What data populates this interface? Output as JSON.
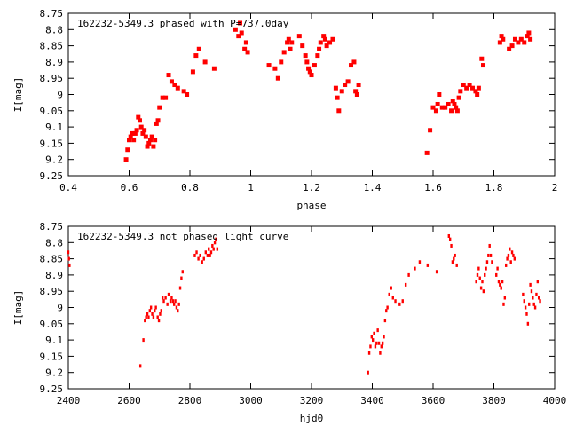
{
  "chart_data": [
    {
      "type": "scatter",
      "title": "162232-5349.3 phased with P=737.0day",
      "xlabel": "phase",
      "ylabel": "I[mag]",
      "xlim": [
        0.4,
        2.0
      ],
      "ylim": [
        9.25,
        8.75
      ],
      "y_inverted": true,
      "grid": false,
      "marker": "filled-square",
      "color": "#ff0000",
      "xticks": [
        "0.4",
        "0.6",
        "0.8",
        "1",
        "1.2",
        "1.4",
        "1.6",
        "1.8",
        "2"
      ],
      "yticks": [
        "8.75",
        "8.8",
        "8.85",
        "8.9",
        "8.95",
        "9",
        "9.05",
        "9.1",
        "9.15",
        "9.2",
        "9.25"
      ],
      "points": [
        [
          0.59,
          9.2
        ],
        [
          0.595,
          9.17
        ],
        [
          0.6,
          9.14
        ],
        [
          0.605,
          9.13
        ],
        [
          0.61,
          9.12
        ],
        [
          0.615,
          9.14
        ],
        [
          0.62,
          9.12
        ],
        [
          0.625,
          9.11
        ],
        [
          0.63,
          9.07
        ],
        [
          0.635,
          9.08
        ],
        [
          0.64,
          9.1
        ],
        [
          0.645,
          9.12
        ],
        [
          0.65,
          9.11
        ],
        [
          0.655,
          9.13
        ],
        [
          0.66,
          9.16
        ],
        [
          0.665,
          9.15
        ],
        [
          0.67,
          9.14
        ],
        [
          0.675,
          9.13
        ],
        [
          0.68,
          9.16
        ],
        [
          0.685,
          9.14
        ],
        [
          0.69,
          9.09
        ],
        [
          0.695,
          9.08
        ],
        [
          0.7,
          9.04
        ],
        [
          0.71,
          9.01
        ],
        [
          0.72,
          9.01
        ],
        [
          0.73,
          8.94
        ],
        [
          0.74,
          8.96
        ],
        [
          0.75,
          8.97
        ],
        [
          0.76,
          8.98
        ],
        [
          0.78,
          8.99
        ],
        [
          0.79,
          9.0
        ],
        [
          0.81,
          8.93
        ],
        [
          0.82,
          8.88
        ],
        [
          0.83,
          8.86
        ],
        [
          0.85,
          8.9
        ],
        [
          0.88,
          8.92
        ],
        [
          0.95,
          8.8
        ],
        [
          0.96,
          8.82
        ],
        [
          0.965,
          8.78
        ],
        [
          0.97,
          8.81
        ],
        [
          0.98,
          8.86
        ],
        [
          0.985,
          8.84
        ],
        [
          0.99,
          8.87
        ],
        [
          1.06,
          8.91
        ],
        [
          1.08,
          8.92
        ],
        [
          1.09,
          8.95
        ],
        [
          1.1,
          8.9
        ],
        [
          1.11,
          8.87
        ],
        [
          1.12,
          8.84
        ],
        [
          1.125,
          8.83
        ],
        [
          1.13,
          8.86
        ],
        [
          1.135,
          8.84
        ],
        [
          1.16,
          8.82
        ],
        [
          1.17,
          8.85
        ],
        [
          1.18,
          8.88
        ],
        [
          1.185,
          8.9
        ],
        [
          1.19,
          8.92
        ],
        [
          1.195,
          8.93
        ],
        [
          1.2,
          8.94
        ],
        [
          1.21,
          8.91
        ],
        [
          1.22,
          8.88
        ],
        [
          1.225,
          8.86
        ],
        [
          1.23,
          8.84
        ],
        [
          1.24,
          8.82
        ],
        [
          1.245,
          8.83
        ],
        [
          1.25,
          8.85
        ],
        [
          1.26,
          8.84
        ],
        [
          1.27,
          8.83
        ],
        [
          1.28,
          8.98
        ],
        [
          1.285,
          9.01
        ],
        [
          1.29,
          9.05
        ],
        [
          1.3,
          8.99
        ],
        [
          1.31,
          8.97
        ],
        [
          1.32,
          8.96
        ],
        [
          1.33,
          8.91
        ],
        [
          1.34,
          8.9
        ],
        [
          1.345,
          8.99
        ],
        [
          1.35,
          9.0
        ],
        [
          1.355,
          8.97
        ],
        [
          1.58,
          9.18
        ],
        [
          1.59,
          9.11
        ],
        [
          1.6,
          9.04
        ],
        [
          1.61,
          9.05
        ],
        [
          1.615,
          9.03
        ],
        [
          1.62,
          9.0
        ],
        [
          1.63,
          9.04
        ],
        [
          1.64,
          9.04
        ],
        [
          1.65,
          9.03
        ],
        [
          1.66,
          9.05
        ],
        [
          1.665,
          9.02
        ],
        [
          1.67,
          9.03
        ],
        [
          1.675,
          9.04
        ],
        [
          1.68,
          9.05
        ],
        [
          1.685,
          9.01
        ],
        [
          1.69,
          8.99
        ],
        [
          1.7,
          8.97
        ],
        [
          1.71,
          8.98
        ],
        [
          1.72,
          8.97
        ],
        [
          1.73,
          8.98
        ],
        [
          1.74,
          8.99
        ],
        [
          1.745,
          9.0
        ],
        [
          1.75,
          8.98
        ],
        [
          1.76,
          8.89
        ],
        [
          1.765,
          8.91
        ],
        [
          1.82,
          8.84
        ],
        [
          1.825,
          8.82
        ],
        [
          1.83,
          8.83
        ],
        [
          1.85,
          8.86
        ],
        [
          1.86,
          8.85
        ],
        [
          1.87,
          8.83
        ],
        [
          1.88,
          8.84
        ],
        [
          1.89,
          8.83
        ],
        [
          1.9,
          8.84
        ],
        [
          1.91,
          8.82
        ],
        [
          1.915,
          8.81
        ],
        [
          1.92,
          8.83
        ]
      ]
    },
    {
      "type": "scatter",
      "title": "162232-5349.3 not phased light curve",
      "xlabel": "hjd0",
      "ylabel": "I[mag]",
      "xlim": [
        2400,
        4000
      ],
      "ylim": [
        9.25,
        8.75
      ],
      "y_inverted": true,
      "grid": false,
      "marker": "small-dot",
      "color": "#ff0000",
      "xticks": [
        "2400",
        "2600",
        "2800",
        "3000",
        "3200",
        "3400",
        "3600",
        "3800",
        "4000"
      ],
      "yticks": [
        "8.75",
        "8.8",
        "8.85",
        "8.9",
        "8.95",
        "9",
        "9.05",
        "9.1",
        "9.15",
        "9.2",
        "9.25"
      ],
      "points": [
        [
          2400,
          8.83
        ],
        [
          2402,
          8.85
        ],
        [
          2404,
          8.87
        ],
        [
          2637,
          9.18
        ],
        [
          2647,
          9.1
        ],
        [
          2652,
          9.04
        ],
        [
          2656,
          9.03
        ],
        [
          2660,
          9.02
        ],
        [
          2664,
          9.03
        ],
        [
          2668,
          9.01
        ],
        [
          2672,
          9.0
        ],
        [
          2676,
          9.02
        ],
        [
          2680,
          9.03
        ],
        [
          2684,
          9.01
        ],
        [
          2688,
          9.0
        ],
        [
          2694,
          9.03
        ],
        [
          2698,
          9.04
        ],
        [
          2702,
          9.02
        ],
        [
          2706,
          9.01
        ],
        [
          2710,
          8.97
        ],
        [
          2714,
          8.98
        ],
        [
          2720,
          8.97
        ],
        [
          2726,
          8.99
        ],
        [
          2730,
          8.96
        ],
        [
          2736,
          8.98
        ],
        [
          2740,
          8.97
        ],
        [
          2744,
          8.98
        ],
        [
          2748,
          8.99
        ],
        [
          2752,
          8.98
        ],
        [
          2756,
          9.0
        ],
        [
          2760,
          9.01
        ],
        [
          2764,
          8.99
        ],
        [
          2768,
          8.94
        ],
        [
          2772,
          8.91
        ],
        [
          2776,
          8.89
        ],
        [
          2816,
          8.84
        ],
        [
          2822,
          8.83
        ],
        [
          2828,
          8.85
        ],
        [
          2834,
          8.84
        ],
        [
          2840,
          8.86
        ],
        [
          2846,
          8.85
        ],
        [
          2852,
          8.83
        ],
        [
          2858,
          8.84
        ],
        [
          2862,
          8.82
        ],
        [
          2866,
          8.84
        ],
        [
          2870,
          8.83
        ],
        [
          2874,
          8.81
        ],
        [
          2878,
          8.82
        ],
        [
          2882,
          8.8
        ],
        [
          2886,
          8.79
        ],
        [
          2890,
          8.82
        ],
        [
          3386,
          9.2
        ],
        [
          3390,
          9.14
        ],
        [
          3394,
          9.12
        ],
        [
          3398,
          9.09
        ],
        [
          3402,
          9.1
        ],
        [
          3406,
          9.08
        ],
        [
          3410,
          9.12
        ],
        [
          3414,
          9.11
        ],
        [
          3418,
          9.07
        ],
        [
          3422,
          9.11
        ],
        [
          3426,
          9.14
        ],
        [
          3430,
          9.12
        ],
        [
          3434,
          9.11
        ],
        [
          3438,
          9.09
        ],
        [
          3442,
          9.04
        ],
        [
          3446,
          9.01
        ],
        [
          3450,
          9.0
        ],
        [
          3456,
          8.96
        ],
        [
          3462,
          8.94
        ],
        [
          3468,
          8.97
        ],
        [
          3476,
          8.98
        ],
        [
          3490,
          8.99
        ],
        [
          3500,
          8.98
        ],
        [
          3510,
          8.93
        ],
        [
          3520,
          8.9
        ],
        [
          3540,
          8.88
        ],
        [
          3556,
          8.86
        ],
        [
          3582,
          8.87
        ],
        [
          3612,
          8.89
        ],
        [
          3652,
          8.78
        ],
        [
          3656,
          8.79
        ],
        [
          3660,
          8.81
        ],
        [
          3664,
          8.86
        ],
        [
          3668,
          8.85
        ],
        [
          3672,
          8.84
        ],
        [
          3678,
          8.87
        ],
        [
          3742,
          8.92
        ],
        [
          3746,
          8.9
        ],
        [
          3750,
          8.88
        ],
        [
          3754,
          8.91
        ],
        [
          3758,
          8.94
        ],
        [
          3762,
          8.92
        ],
        [
          3766,
          8.95
        ],
        [
          3770,
          8.9
        ],
        [
          3774,
          8.88
        ],
        [
          3778,
          8.86
        ],
        [
          3782,
          8.84
        ],
        [
          3786,
          8.81
        ],
        [
          3790,
          8.84
        ],
        [
          3794,
          8.86
        ],
        [
          3808,
          8.9
        ],
        [
          3812,
          8.88
        ],
        [
          3816,
          8.92
        ],
        [
          3820,
          8.93
        ],
        [
          3824,
          8.94
        ],
        [
          3828,
          8.92
        ],
        [
          3832,
          8.99
        ],
        [
          3836,
          8.97
        ],
        [
          3840,
          8.87
        ],
        [
          3844,
          8.85
        ],
        [
          3848,
          8.84
        ],
        [
          3852,
          8.82
        ],
        [
          3856,
          8.86
        ],
        [
          3860,
          8.83
        ],
        [
          3864,
          8.84
        ],
        [
          3868,
          8.85
        ],
        [
          3896,
          8.96
        ],
        [
          3900,
          8.98
        ],
        [
          3904,
          9.0
        ],
        [
          3908,
          9.02
        ],
        [
          3912,
          9.05
        ],
        [
          3916,
          8.99
        ],
        [
          3920,
          8.93
        ],
        [
          3924,
          8.95
        ],
        [
          3928,
          8.97
        ],
        [
          3932,
          8.99
        ],
        [
          3936,
          9.0
        ],
        [
          3940,
          8.96
        ],
        [
          3944,
          8.92
        ],
        [
          3948,
          8.97
        ],
        [
          3952,
          8.98
        ]
      ]
    }
  ]
}
